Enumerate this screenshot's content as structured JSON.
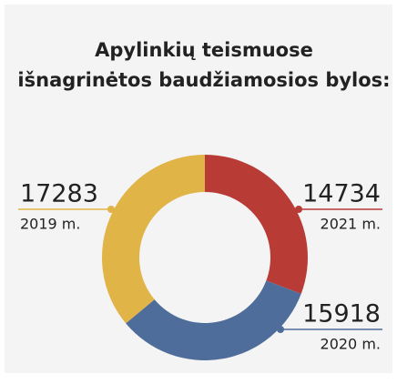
{
  "chart_data": {
    "type": "donut",
    "title": [
      "Apylinkių teismuose",
      "išnagrinėtos baudžiamosios bylos:"
    ],
    "categories": [
      "2021 m.",
      "2020 m.",
      "2019 m."
    ],
    "values": [
      14734,
      15918,
      17283
    ],
    "colors": [
      "#b83b36",
      "#4f6d9a",
      "#e0b446"
    ]
  }
}
